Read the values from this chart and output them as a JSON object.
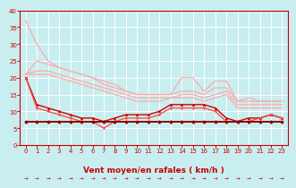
{
  "background_color": "#c8eef0",
  "grid_color": "#ffffff",
  "xlabel": "Vent moyen/en rafales ( km/h )",
  "xlabel_color": "#cc0000",
  "xlabel_fontsize": 6.5,
  "xtick_color": "#cc0000",
  "ytick_color": "#cc0000",
  "xlim": [
    -0.5,
    23.5
  ],
  "ylim": [
    0,
    40
  ],
  "yticks": [
    0,
    5,
    10,
    15,
    20,
    25,
    30,
    35,
    40
  ],
  "xticks": [
    0,
    1,
    2,
    3,
    4,
    5,
    6,
    7,
    8,
    9,
    10,
    11,
    12,
    13,
    14,
    15,
    16,
    17,
    18,
    19,
    20,
    21,
    22,
    23
  ],
  "tick_fontsize": 5,
  "series": [
    {
      "x": [
        0,
        1,
        2,
        3,
        4,
        5,
        6,
        7,
        8,
        9,
        10,
        11,
        12,
        13,
        14,
        15,
        16,
        17,
        18,
        19,
        20,
        21,
        22,
        23
      ],
      "y": [
        37,
        30,
        25,
        23,
        22,
        21,
        20,
        18,
        17,
        16,
        15,
        15,
        15,
        15,
        20,
        20,
        16,
        19,
        19,
        13,
        14,
        13,
        13,
        13
      ],
      "color": "#ffaaaa",
      "marker": null,
      "markersize": 2,
      "linewidth": 0.9
    },
    {
      "x": [
        0,
        1,
        2,
        3,
        4,
        5,
        6,
        7,
        8,
        9,
        10,
        11,
        12,
        13,
        14,
        15,
        16,
        17,
        18,
        19,
        20,
        21,
        22,
        23
      ],
      "y": [
        21,
        25,
        24,
        23,
        22,
        21,
        20,
        19,
        18,
        16,
        15,
        15,
        15,
        15,
        16,
        16,
        15,
        17,
        17,
        13,
        13,
        13,
        13,
        13
      ],
      "color": "#ffaaaa",
      "marker": null,
      "markersize": 2,
      "linewidth": 0.9
    },
    {
      "x": [
        0,
        1,
        2,
        3,
        4,
        5,
        6,
        7,
        8,
        9,
        10,
        11,
        12,
        13,
        14,
        15,
        16,
        17,
        18,
        19,
        20,
        21,
        22,
        23
      ],
      "y": [
        21,
        22,
        22,
        21,
        20,
        19,
        18,
        17,
        16,
        15,
        14,
        14,
        14,
        14,
        15,
        15,
        14,
        15,
        16,
        12,
        12,
        12,
        12,
        12
      ],
      "color": "#ffaaaa",
      "marker": null,
      "markersize": 2,
      "linewidth": 0.9
    },
    {
      "x": [
        0,
        1,
        2,
        3,
        4,
        5,
        6,
        7,
        8,
        9,
        10,
        11,
        12,
        13,
        14,
        15,
        16,
        17,
        18,
        19,
        20,
        21,
        22,
        23
      ],
      "y": [
        21,
        21,
        21,
        20,
        19,
        18,
        17,
        16,
        15,
        14,
        13,
        13,
        13,
        14,
        14,
        14,
        13,
        14,
        15,
        11,
        11,
        11,
        11,
        11
      ],
      "color": "#ffaaaa",
      "marker": null,
      "markersize": 2,
      "linewidth": 0.9
    },
    {
      "x": [
        0,
        1,
        2,
        3,
        4,
        5,
        6,
        7,
        8,
        9,
        10,
        11,
        12,
        13,
        14,
        15,
        16,
        17,
        18,
        19,
        20,
        21,
        22,
        23
      ],
      "y": [
        20,
        12,
        11,
        10,
        9,
        8,
        8,
        7,
        8,
        9,
        9,
        9,
        10,
        12,
        12,
        12,
        12,
        11,
        8,
        7,
        8,
        8,
        9,
        8
      ],
      "color": "#cc0000",
      "marker": "^",
      "markersize": 2,
      "linewidth": 1.0
    },
    {
      "x": [
        0,
        1,
        2,
        3,
        4,
        5,
        6,
        7,
        8,
        9,
        10,
        11,
        12,
        13,
        14,
        15,
        16,
        17,
        18,
        19,
        20,
        21,
        22,
        23
      ],
      "y": [
        20,
        11,
        10,
        9,
        8,
        7,
        7,
        5,
        7,
        8,
        8,
        8,
        9,
        11,
        11,
        11,
        11,
        10,
        7,
        7,
        7,
        8,
        9,
        8
      ],
      "color": "#ff4444",
      "marker": "v",
      "markersize": 2,
      "linewidth": 0.9
    },
    {
      "x": [
        0,
        1,
        2,
        3,
        4,
        5,
        6,
        7,
        8,
        9,
        10,
        11,
        12,
        13,
        14,
        15,
        16,
        17,
        18,
        19,
        20,
        21,
        22,
        23
      ],
      "y": [
        7,
        7,
        7,
        7,
        7,
        7,
        7,
        7,
        7,
        7,
        7,
        7,
        7,
        7,
        7,
        7,
        7,
        7,
        7,
        7,
        7,
        7,
        7,
        7
      ],
      "color": "#cc0000",
      "marker": "D",
      "markersize": 2,
      "linewidth": 1.2
    },
    {
      "x": [
        0,
        1,
        2,
        3,
        4,
        5,
        6,
        7,
        8,
        9,
        10,
        11,
        12,
        13,
        14,
        15,
        16,
        17,
        18,
        19,
        20,
        21,
        22,
        23
      ],
      "y": [
        7,
        7,
        7,
        7,
        7,
        7,
        7,
        7,
        7,
        7,
        7,
        7,
        7,
        7,
        7,
        7,
        7,
        7,
        7,
        7,
        7,
        7,
        7,
        7
      ],
      "color": "#880000",
      "marker": "^",
      "markersize": 2,
      "linewidth": 1.2
    }
  ]
}
